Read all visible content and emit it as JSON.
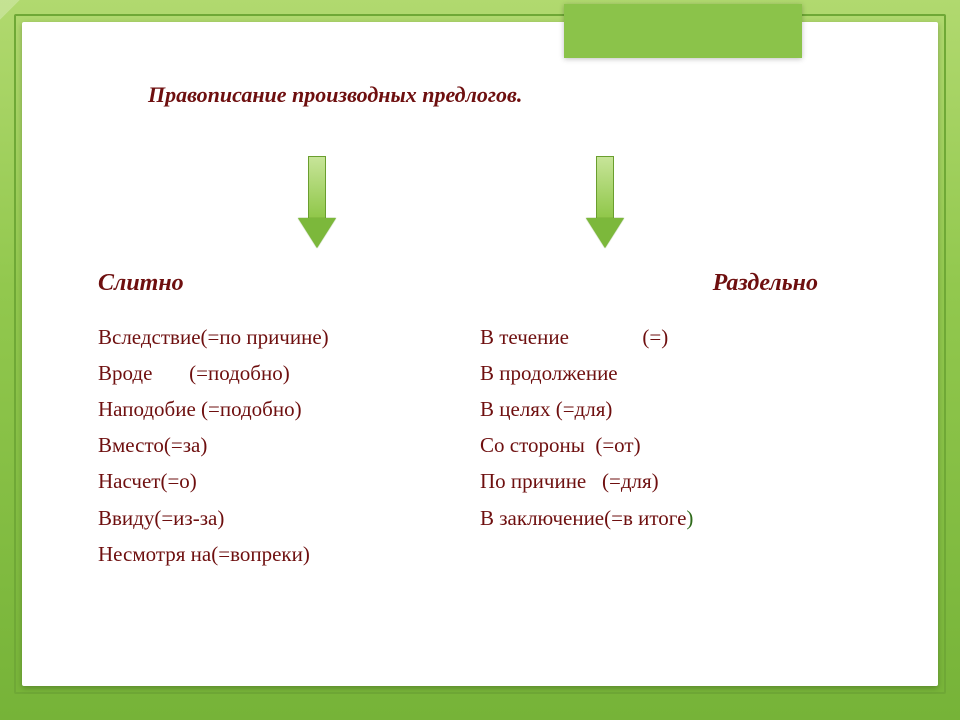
{
  "background_color": "#92c84e",
  "slide_bg": "#ffffff",
  "tab_color": "#8bc34a",
  "text_color": "#6e0f0f",
  "accent_green": "#2e6a1a",
  "title": "Правописание производных предлогов.",
  "arrow": {
    "shaft_gradient": [
      "#c8e59a",
      "#8cc544"
    ],
    "head_color": "#7cb83b"
  },
  "columns": {
    "left": {
      "header": "Слитно",
      "lines": [
        "Вследствие(=по причине)",
        "Вроде       (=подобно)",
        "Наподобие (=подобно)",
        "Вместо(=за)",
        "Насчет(=о)",
        "Ввиду(=из-за)",
        "Несмотря на(=вопреки)"
      ]
    },
    "right": {
      "header": "Раздельно",
      "lines": [
        "В течение              (=)",
        "В продолжение",
        "В целях (=для)",
        "Со стороны  (=от)",
        "По причине   (=для)",
        "В заключение(=в итоге"
      ],
      "tail_paren": ")"
    }
  },
  "fonts": {
    "title_size": 22,
    "header_size": 24,
    "item_size": 21
  }
}
